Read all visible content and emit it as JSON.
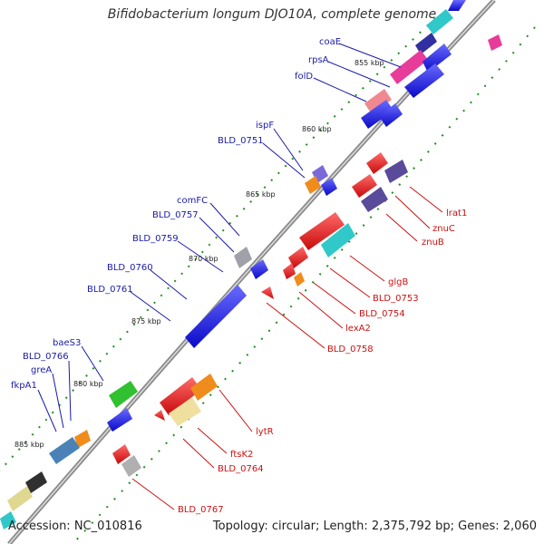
{
  "title": "Bifidobacterium longum DJO10A, complete genome",
  "footer": {
    "accession": "Accession: NC_010816",
    "summary": "Topology: circular; Length: 2,375,792 bp; Genes: 2,060"
  },
  "kbp_ticks": [
    "855 kbp",
    "860 kbp",
    "865 kbp",
    "870 kbp",
    "875 kbp",
    "880 kbp",
    "885 kbp"
  ],
  "forward_labels": [
    "coaE",
    "rpsA",
    "folD",
    "ispF",
    "BLD_0751",
    "comFC",
    "BLD_0757",
    "BLD_0759",
    "BLD_0760",
    "BLD_0761",
    "baeS3",
    "BLD_0766",
    "greA",
    "fkpA1"
  ],
  "reverse_labels": [
    "lrat1",
    "znuC",
    "znuB",
    "glgB",
    "BLD_0753",
    "BLD_0754",
    "lexA2",
    "BLD_0758",
    "lytR",
    "ftsK2",
    "BLD_0764",
    "BLD_0767"
  ],
  "colors": {
    "forward_label": "#1a1aa8",
    "reverse_label": "#cc1111",
    "forward_gene": "#1414e6",
    "reverse_gene": "#e0141e",
    "backbone": "#888888",
    "gc_dot": "#1f8f1f"
  }
}
